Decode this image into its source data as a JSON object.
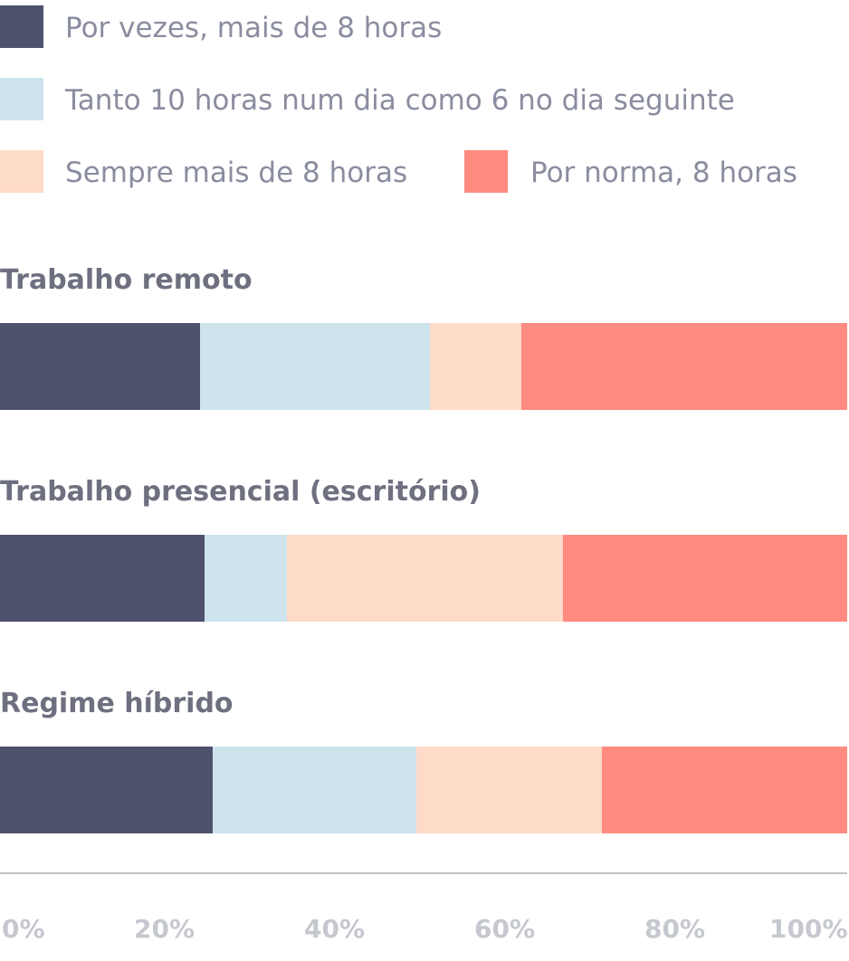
{
  "chart_data": {
    "type": "bar",
    "orientation": "horizontal",
    "stacked": true,
    "xlim": [
      0,
      100
    ],
    "x_ticks": [
      "0%",
      "20%",
      "40%",
      "60%",
      "80%",
      "100%"
    ],
    "categories": [
      "Trabalho remoto",
      "Trabalho presencial (escritório)",
      "Regime híbrido"
    ],
    "series": [
      {
        "name": "Por vezes, mais de 8 horas",
        "color": "#4e526d",
        "values": [
          23.6,
          24.1,
          25.1
        ]
      },
      {
        "name": "Tanto 10 horas num dia como 6 no dia seguinte",
        "color": "#cde4ec",
        "values": [
          27.2,
          9.8,
          24.0
        ]
      },
      {
        "name": "Sempre mais de 8 horas",
        "color": "#fedac8",
        "values": [
          10.7,
          32.6,
          21.9
        ]
      },
      {
        "name": "Por norma, 8 horas",
        "color": "#ff8b80",
        "values": [
          38.5,
          33.5,
          29.0
        ]
      }
    ],
    "legend_position": "top",
    "grid": false
  }
}
